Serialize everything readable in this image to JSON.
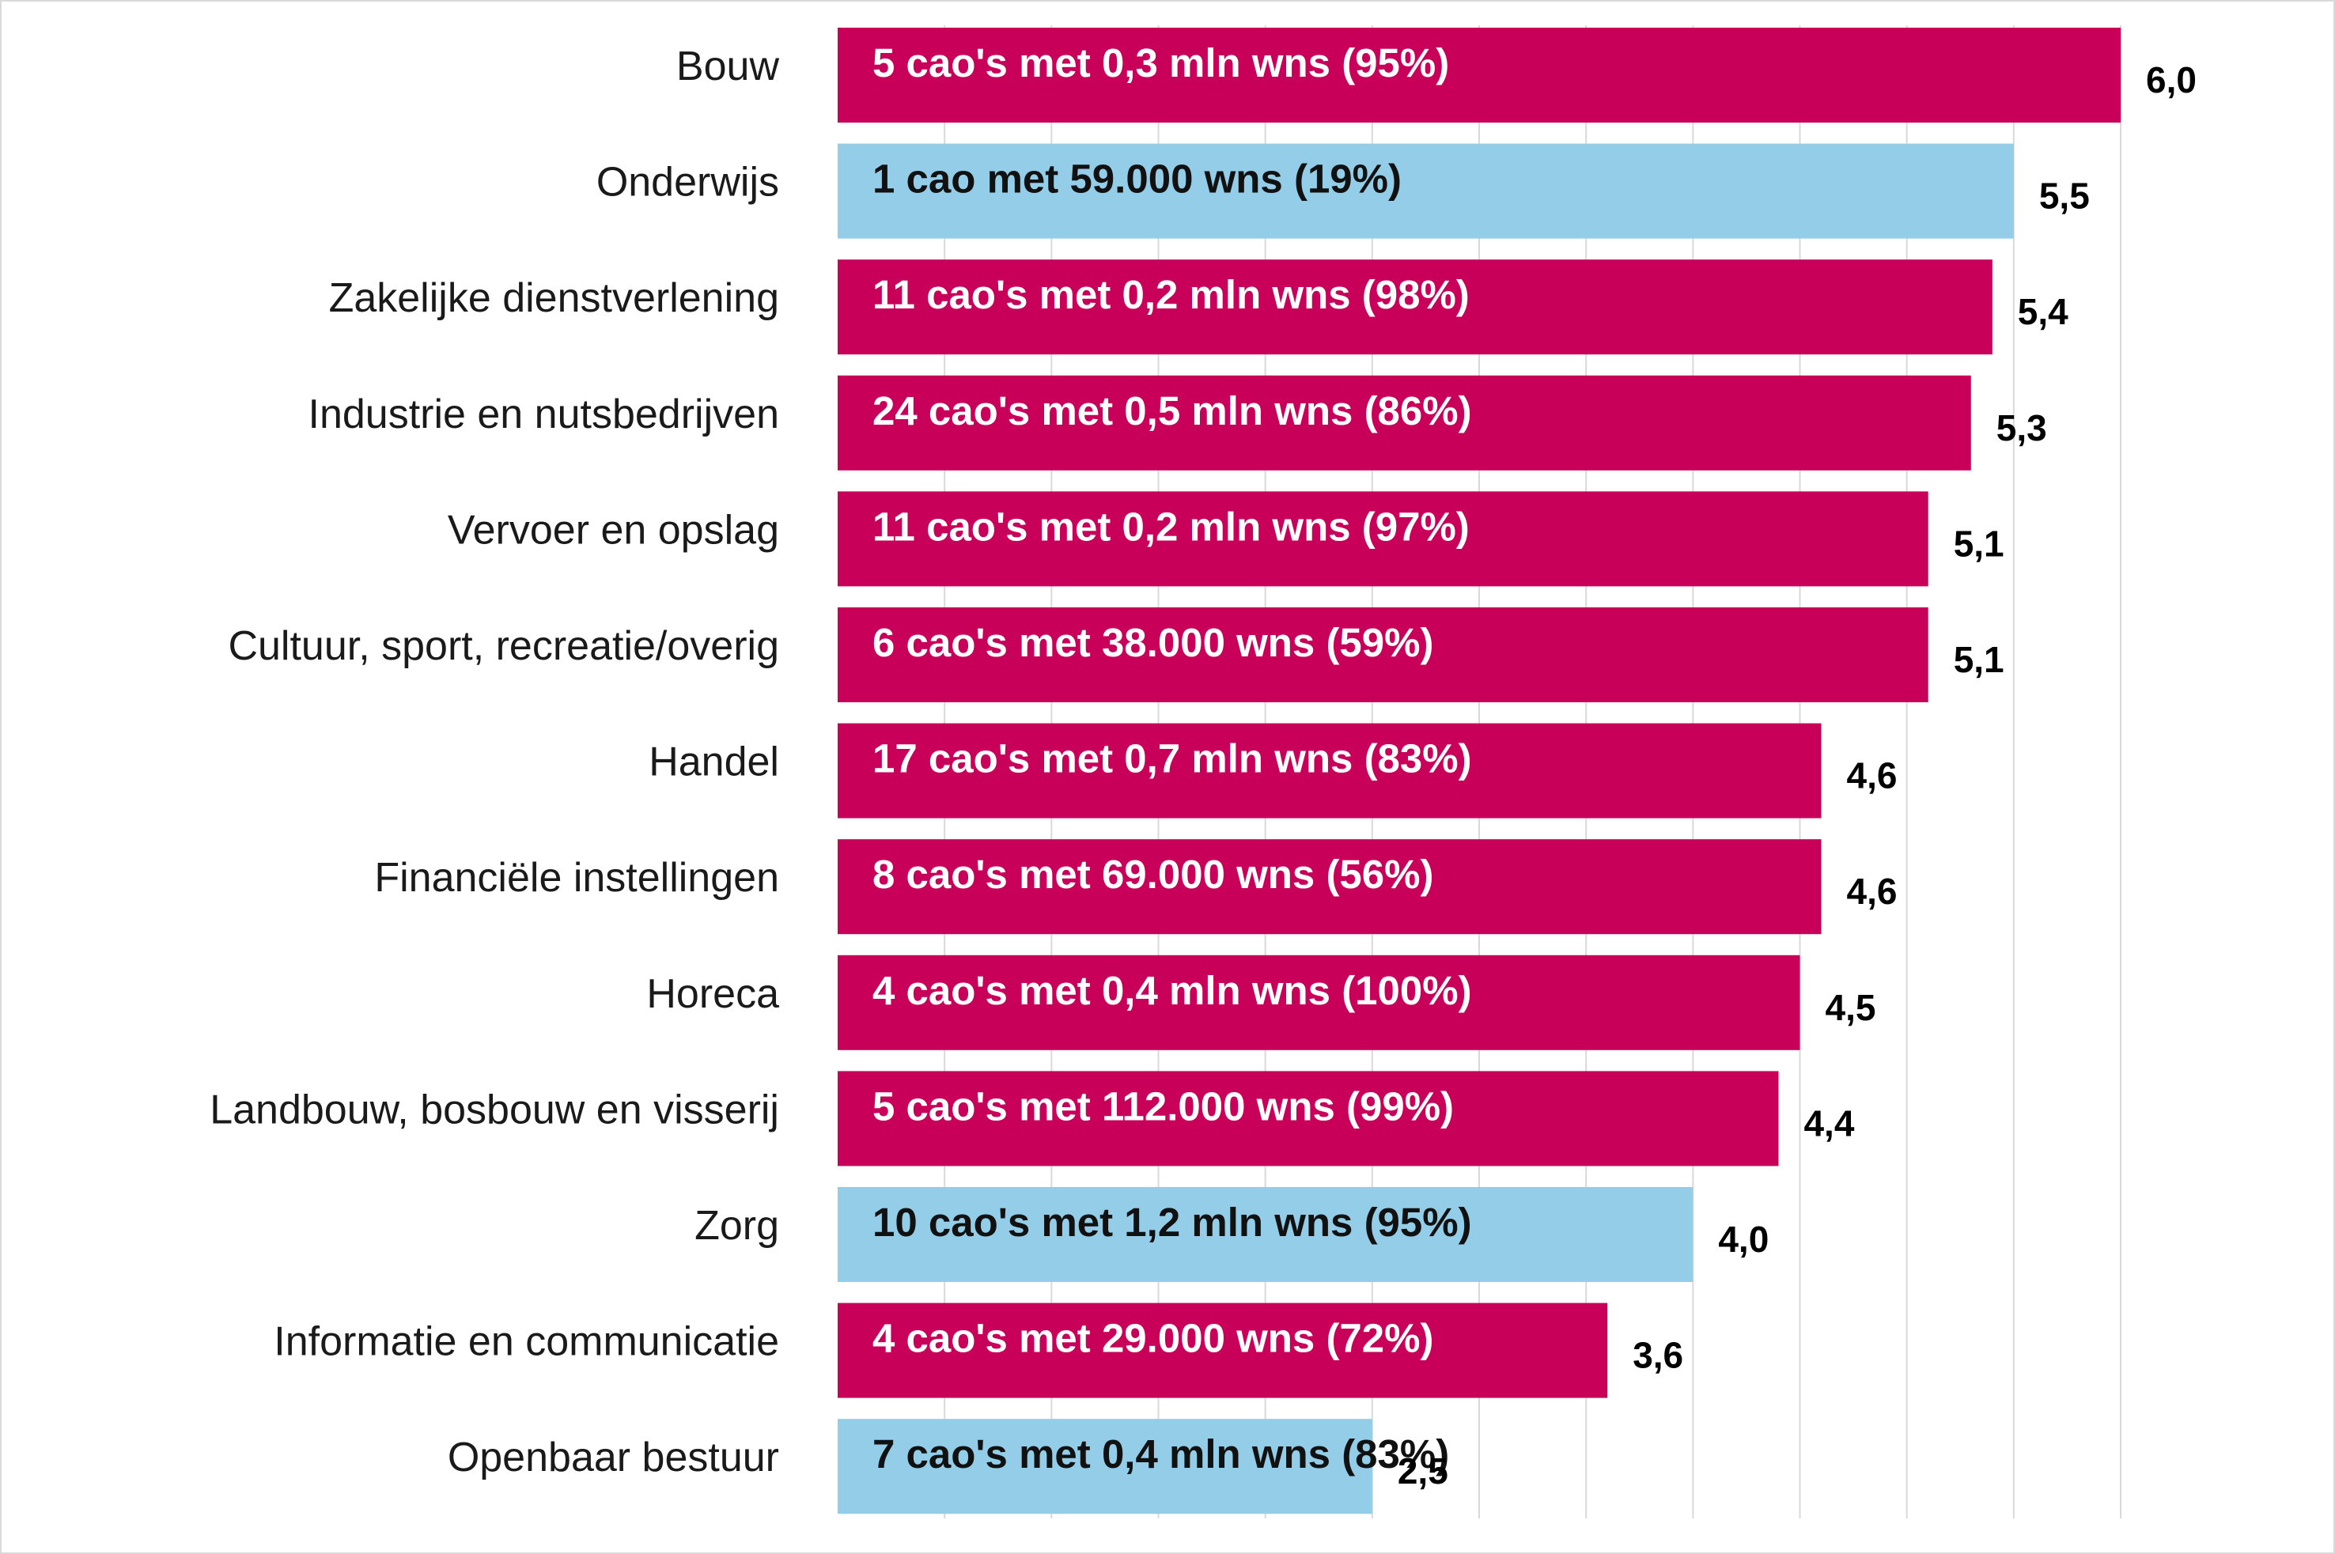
{
  "chart_data": {
    "type": "bar",
    "orientation": "horizontal",
    "grid": true,
    "xlim": [
      0,
      6.1
    ],
    "categories": [
      "Bouw",
      "Onderwijs",
      "Zakelijke dienstverlening",
      "Industrie en nutsbedrijven",
      "Vervoer en opslag",
      "Cultuur, sport, recreatie/overig",
      "Handel",
      "Financiële instellingen",
      "Horeca",
      "Landbouw, bosbouw en visserij",
      "Zorg",
      "Informatie en communicatie",
      "Openbaar bestuur"
    ],
    "values": [
      6.0,
      5.5,
      5.4,
      5.3,
      5.1,
      5.1,
      4.6,
      4.6,
      4.5,
      4.4,
      4.0,
      3.6,
      2.5
    ],
    "value_labels": [
      "6,0",
      "5,5",
      "5,4",
      "5,3",
      "5,1",
      "5,1",
      "4,6",
      "4,6",
      "4,5",
      "4,4",
      "4,0",
      "3,6",
      "2,5"
    ],
    "bar_labels": [
      "5 cao's met 0,3 mln wns (95%)",
      "1 cao met 59.000 wns (19%)",
      "11 cao's met 0,2 mln wns (98%)",
      "24 cao's met 0,5 mln wns (86%)",
      "11 cao's met 0,2 mln wns (97%)",
      "6 cao's met 38.000 wns (59%)",
      "17 cao's met 0,7 mln wns (83%)",
      "8 cao's met 69.000 wns (56%)",
      "4 cao's met 0,4 mln wns (100%)",
      "5 cao's met 112.000 wns (99%)",
      "10 cao's met 1,2 mln wns (95%)",
      "4 cao's met 29.000 wns (72%)",
      "7 cao's met 0,4 mln wns (83%)"
    ],
    "bar_color_groups": [
      "crimson",
      "blue",
      "crimson",
      "crimson",
      "crimson",
      "crimson",
      "crimson",
      "crimson",
      "crimson",
      "crimson",
      "blue",
      "crimson",
      "blue"
    ],
    "colors": {
      "crimson": "#C8005A",
      "blue": "#93CDE8",
      "grid": "#d9d9d9"
    },
    "title": "",
    "xlabel": "",
    "ylabel": ""
  }
}
